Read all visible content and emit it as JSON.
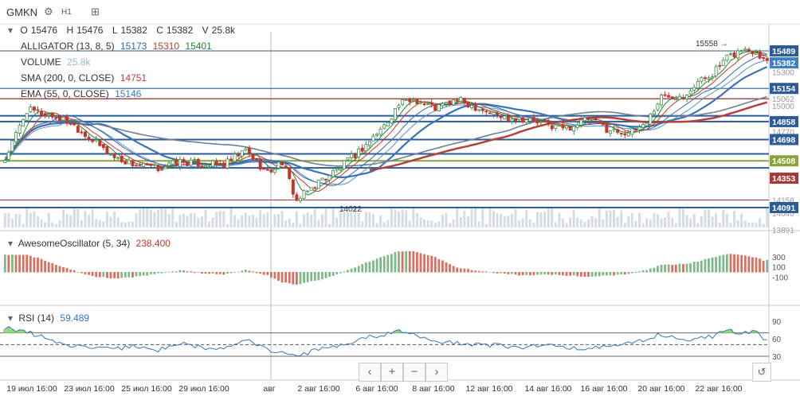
{
  "toolbar": {
    "symbol": "GMKN",
    "interval": "H1",
    "gear_icon": "gear-icon",
    "compare_icon": "compare-icon"
  },
  "ohlc": {
    "o_label": "O",
    "o": "15476",
    "h_label": "H",
    "h": "15476",
    "l_label": "L",
    "l": "15382",
    "c_label": "C",
    "c": "15382",
    "v_label": "V",
    "v": "25.8k"
  },
  "indicators": {
    "alligator": {
      "name": "ALLIGATOR (13, 8, 5)",
      "v1": "15173",
      "v2": "15310",
      "v3": "15401",
      "c1": "#2f66b3",
      "c2": "#c0392b",
      "c3": "#27813b"
    },
    "volume": {
      "name": "VOLUME",
      "v": "25.8k"
    },
    "sma": {
      "name": "SMA (200, 0, CLOSE)",
      "v": "14751",
      "color": "#b3423c"
    },
    "ema": {
      "name": "EMA (55, 0, CLOSE)",
      "v": "15146",
      "color": "#3a74b8"
    }
  },
  "annotations": {
    "high": "15558",
    "low": "14022"
  },
  "price_axis": {
    "ticks": [
      "15300",
      "15062",
      "15000",
      "14770",
      "14158",
      "14040",
      "13891"
    ],
    "labels": [
      {
        "text": "15489",
        "price": 15489,
        "bg": "#2c5c96"
      },
      {
        "text": "15382",
        "price": 15382,
        "bg": "#3b7fc4"
      },
      {
        "text": "15154",
        "price": 15154,
        "bg": "#2c5c96"
      },
      {
        "text": "14858",
        "price": 14858,
        "bg": "#2c5c96"
      },
      {
        "text": "14698",
        "price": 14698,
        "bg": "#2c5c96"
      },
      {
        "text": "14508",
        "price": 14508,
        "bg": "#8ba33d"
      },
      {
        "text": "14353",
        "price": 14353,
        "bg": "#a33a3a"
      },
      {
        "text": "14091",
        "price": 14091,
        "bg": "#2c5c96"
      }
    ]
  },
  "hlines": [
    {
      "price": 15489,
      "color": "#2c5c96",
      "w": 1
    },
    {
      "price": 15154,
      "color": "#2c5c96",
      "w": 1.2
    },
    {
      "price": 15062,
      "color": "#a33a3a",
      "w": 1.4
    },
    {
      "price": 14910,
      "color": "#2c5c96",
      "w": 2
    },
    {
      "price": 14858,
      "color": "#2c5c96",
      "w": 2
    },
    {
      "price": 14698,
      "color": "#2c5c96",
      "w": 2
    },
    {
      "price": 14570,
      "color": "#2c5c96",
      "w": 2
    },
    {
      "price": 14508,
      "color": "#8ba33d",
      "w": 2
    },
    {
      "price": 14445,
      "color": "#2c5c96",
      "w": 2
    },
    {
      "price": 14158,
      "color": "#a33a3a",
      "w": 1
    },
    {
      "price": 14091,
      "color": "#2c5c96",
      "w": 2
    }
  ],
  "ao": {
    "name": "AwesomeOscillator (5, 34)",
    "v": "238.400",
    "ticks": [
      "300",
      "100",
      "-100"
    ]
  },
  "rsi": {
    "name": "RSI (14)",
    "v": "59.489",
    "ticks": [
      "90",
      "60",
      "30"
    ]
  },
  "time_axis": {
    "labels": [
      "19 июл 16:00",
      "23 июл 16:00",
      "25 июл 16:00",
      "29 июл 16:00",
      "авг",
      "2 авг 16:00",
      "6 авг 16:00",
      "8 авг 16:00",
      "12 авг 16:00",
      "14 авг 16:00",
      "16 авг 16:00",
      "20 авг 16:00",
      "22 авг 16:00"
    ]
  },
  "nav": {
    "left": "‹",
    "zoom_in": "+",
    "zoom_out": "−",
    "right": "›",
    "reset": "↺"
  },
  "chart_data": {
    "type": "candlestick",
    "anchors": [
      [
        0,
        14520
      ],
      [
        6,
        14960
      ],
      [
        12,
        14920
      ],
      [
        18,
        14850
      ],
      [
        24,
        14690
      ],
      [
        30,
        14540
      ],
      [
        36,
        14470
      ],
      [
        42,
        14440
      ],
      [
        48,
        14500
      ],
      [
        54,
        14480
      ],
      [
        60,
        14470
      ],
      [
        66,
        14600
      ],
      [
        72,
        14400
      ],
      [
        76,
        14500
      ],
      [
        80,
        14150
      ],
      [
        86,
        14320
      ],
      [
        92,
        14450
      ],
      [
        98,
        14620
      ],
      [
        104,
        14820
      ],
      [
        108,
        15010
      ],
      [
        112,
        15060
      ],
      [
        118,
        14980
      ],
      [
        124,
        15050
      ],
      [
        130,
        14980
      ],
      [
        136,
        14900
      ],
      [
        142,
        14890
      ],
      [
        148,
        14830
      ],
      [
        154,
        14800
      ],
      [
        160,
        14880
      ],
      [
        166,
        14780
      ],
      [
        172,
        14760
      ],
      [
        176,
        14860
      ],
      [
        180,
        15080
      ],
      [
        186,
        15100
      ],
      [
        190,
        15210
      ],
      [
        194,
        15290
      ],
      [
        198,
        15420
      ],
      [
        202,
        15500
      ],
      [
        206,
        15490
      ],
      [
        208,
        15420
      ]
    ],
    "ao_anchors": [
      [
        0,
        340
      ],
      [
        6,
        350
      ],
      [
        12,
        200
      ],
      [
        18,
        50
      ],
      [
        24,
        -80
      ],
      [
        30,
        -120
      ],
      [
        36,
        -90
      ],
      [
        42,
        -20
      ],
      [
        48,
        30
      ],
      [
        54,
        -20
      ],
      [
        60,
        -40
      ],
      [
        66,
        40
      ],
      [
        72,
        -60
      ],
      [
        76,
        -200
      ],
      [
        80,
        -240
      ],
      [
        86,
        -150
      ],
      [
        92,
        -20
      ],
      [
        98,
        150
      ],
      [
        104,
        320
      ],
      [
        108,
        410
      ],
      [
        112,
        420
      ],
      [
        118,
        300
      ],
      [
        124,
        80
      ],
      [
        130,
        20
      ],
      [
        136,
        -20
      ],
      [
        142,
        -60
      ],
      [
        148,
        -40
      ],
      [
        154,
        -60
      ],
      [
        160,
        -90
      ],
      [
        166,
        -60
      ],
      [
        172,
        -20
      ],
      [
        176,
        40
      ],
      [
        180,
        140
      ],
      [
        186,
        160
      ],
      [
        190,
        210
      ],
      [
        194,
        290
      ],
      [
        198,
        360
      ],
      [
        202,
        340
      ],
      [
        206,
        290
      ],
      [
        208,
        230
      ]
    ],
    "rsi_anchors": [
      [
        0,
        80
      ],
      [
        6,
        72
      ],
      [
        12,
        60
      ],
      [
        18,
        48
      ],
      [
        24,
        45
      ],
      [
        30,
        42
      ],
      [
        36,
        48
      ],
      [
        42,
        40
      ],
      [
        48,
        52
      ],
      [
        54,
        45
      ],
      [
        60,
        44
      ],
      [
        66,
        58
      ],
      [
        72,
        42
      ],
      [
        76,
        35
      ],
      [
        80,
        28
      ],
      [
        86,
        42
      ],
      [
        92,
        48
      ],
      [
        98,
        62
      ],
      [
        104,
        66
      ],
      [
        108,
        72
      ],
      [
        112,
        66
      ],
      [
        118,
        55
      ],
      [
        124,
        52
      ],
      [
        130,
        50
      ],
      [
        136,
        48
      ],
      [
        142,
        45
      ],
      [
        148,
        50
      ],
      [
        154,
        46
      ],
      [
        160,
        42
      ],
      [
        166,
        48
      ],
      [
        172,
        52
      ],
      [
        176,
        60
      ],
      [
        180,
        68
      ],
      [
        186,
        56
      ],
      [
        190,
        62
      ],
      [
        194,
        64
      ],
      [
        198,
        74
      ],
      [
        202,
        70
      ],
      [
        206,
        74
      ],
      [
        208,
        59
      ]
    ]
  }
}
